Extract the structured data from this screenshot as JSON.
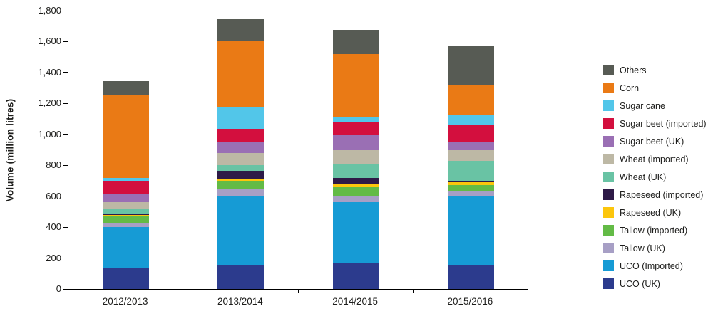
{
  "chart_data": {
    "type": "bar",
    "stacked": true,
    "title": "",
    "xlabel": "",
    "ylabel": "Volume (million litres)",
    "ylim": [
      0,
      1800
    ],
    "ytick_step": 200,
    "ytick_labels": [
      "0",
      "200",
      "400",
      "600",
      "800",
      "1,000",
      "1,200",
      "1,400",
      "1,600",
      "1,800"
    ],
    "grid": false,
    "legend_position": "right",
    "categories": [
      "2012/2013",
      "2013/2014",
      "2014/2015",
      "2015/2016"
    ],
    "series": [
      {
        "name": "UCO (UK)",
        "color": "#2c3b8d",
        "values": [
          135,
          150,
          165,
          150
        ]
      },
      {
        "name": "UCO (Imported)",
        "color": "#169bd5",
        "values": [
          265,
          455,
          395,
          450
        ]
      },
      {
        "name": "Tallow (UK)",
        "color": "#a79fc5",
        "values": [
          30,
          45,
          45,
          30
        ]
      },
      {
        "name": "Tallow (imported)",
        "color": "#63bb46",
        "values": [
          40,
          50,
          55,
          40
        ]
      },
      {
        "name": "Rapeseed (UK)",
        "color": "#fcc60c",
        "values": [
          10,
          15,
          15,
          20
        ]
      },
      {
        "name": "Rapeseed (imported)",
        "color": "#2e1a47",
        "values": [
          10,
          50,
          45,
          10
        ]
      },
      {
        "name": "Wheat (UK)",
        "color": "#69c3a4",
        "values": [
          30,
          35,
          90,
          130
        ]
      },
      {
        "name": "Wheat (imported)",
        "color": "#bdb8a5",
        "values": [
          40,
          80,
          90,
          70
        ]
      },
      {
        "name": "Sugar beet (UK)",
        "color": "#9a6fb4",
        "values": [
          55,
          70,
          95,
          55
        ]
      },
      {
        "name": "Sugar beet (imported)",
        "color": "#d30f3e",
        "values": [
          85,
          85,
          85,
          105
        ]
      },
      {
        "name": "Sugar cane",
        "color": "#52c6e9",
        "values": [
          20,
          140,
          30,
          70
        ]
      },
      {
        "name": "Corn",
        "color": "#ea7a15",
        "values": [
          535,
          430,
          410,
          190
        ]
      },
      {
        "name": "Others",
        "color": "#575b54",
        "values": [
          90,
          140,
          155,
          255
        ]
      }
    ],
    "totals": [
      1345,
      1745,
      1675,
      1575
    ]
  }
}
